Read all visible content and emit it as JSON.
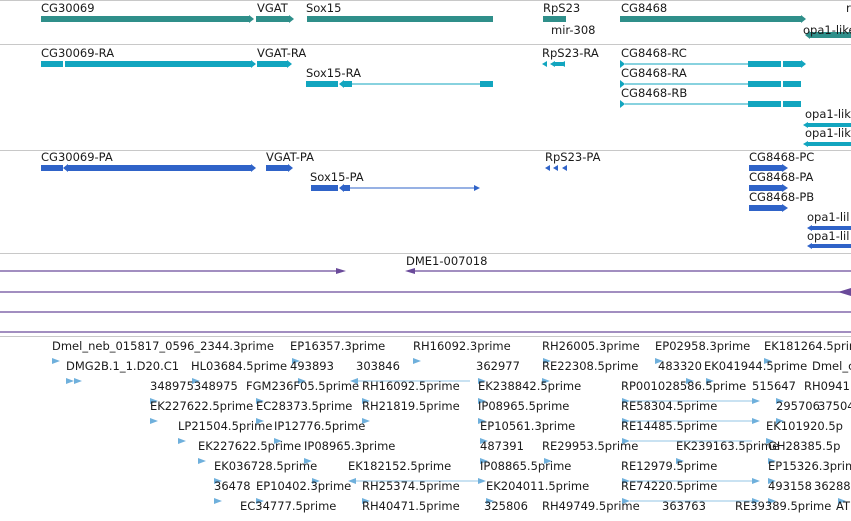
{
  "tracks": {
    "genes": {
      "labels": [
        "CG30069",
        "VGAT",
        "Sox15",
        "RpS23",
        "mir-308",
        "CG8468",
        "r",
        "opa1-like"
      ],
      "color": "#2f8f8a"
    },
    "transcripts": {
      "labels": [
        "CG30069-RA",
        "VGAT-RA",
        "Sox15-RA",
        "RpS23-RA",
        "CG8468-RC",
        "CG8468-RA",
        "CG8468-RB",
        "opa1-lik",
        "opa1-lik"
      ],
      "color": "#12a5bf"
    },
    "proteins": {
      "labels": [
        "CG30069-PA",
        "VGAT-PA",
        "Sox15-PA",
        "RpS23-PA",
        "CG8468-PC",
        "CG8468-PA",
        "CG8468-PB",
        "opa1-lil",
        "opa1-lil"
      ],
      "color": "#2f63c8"
    },
    "repeats": {
      "labels": [
        "DME1-007018"
      ],
      "color": "#6a4a9a"
    },
    "ests": {
      "color": "#6fb0dc",
      "labels": [
        "Dmel_neb_015817_0596_2344.3prime",
        "EP16357.3prime",
        "RH16092.3prime",
        "RH26005.3prime",
        "EP02958.3prime",
        "EK181264.5prime",
        "DMG2B.1_1.D20.C1",
        "HL03684.5prime",
        "493893",
        "303846",
        "362977",
        "RE22308.5prime",
        "483320",
        "EK041944.5prime",
        "Dmel_c",
        "348975348975",
        "FGM236F05.5prime",
        "RH16092.5prime",
        "EK238842.5prime",
        "RP001028586.5prime",
        "515647",
        "RH0941",
        "EK227622.5prime",
        "EC28373.5prime",
        "RH21819.5prime",
        "IP08965.5prime",
        "RE58304.5prime",
        "295706",
        "37504",
        "LP21504.5prime",
        "IP12776.5prime",
        "EP10561.3prime",
        "RE14485.5prime",
        "EK101920.5p",
        "EK227622.5prime",
        "IP08965.3prime",
        "487391",
        "RE29953.5prime",
        "EK239163.5prime",
        "GH28385.5p",
        "EK036728.5prime",
        "EK182152.5prime",
        "IP08865.5prime",
        "RE12979.5prime",
        "EP15326.3prim",
        "36478",
        "EP10402.3prime",
        "RH25374.5prime",
        "EK204011.5prime",
        "RE74220.5prime",
        "493158",
        "36288",
        "EC34777.5prime",
        "RH40471.5prime",
        "325806",
        "RH49749.5prime",
        "363763",
        "RE39389.5prime",
        "AT"
      ]
    }
  }
}
